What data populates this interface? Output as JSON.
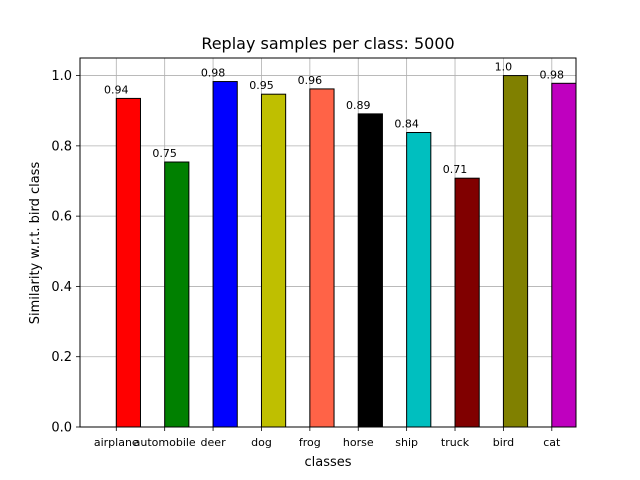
{
  "chart_data": {
    "type": "bar",
    "title": "Replay samples per class: 5000",
    "xlabel": "classes",
    "ylabel": "Similarity w.r.t. bird class",
    "categories": [
      "airplane",
      "automobile",
      "deer",
      "dog",
      "frog",
      "horse",
      "ship",
      "truck",
      "bird",
      "cat"
    ],
    "values": [
      0.935,
      0.754,
      0.983,
      0.947,
      0.962,
      0.891,
      0.838,
      0.708,
      1.0,
      0.978
    ],
    "data_labels": [
      "0.94",
      "0.75",
      "0.98",
      "0.95",
      "0.96",
      "0.89",
      "0.84",
      "0.71",
      "1.0",
      "0.98"
    ],
    "colors": [
      "#ff0000",
      "#008000",
      "#0000ff",
      "#bfbf00",
      "#ff6347",
      "#000000",
      "#00bfbf",
      "#800000",
      "#808000",
      "#bf00bf"
    ],
    "ylim": [
      0,
      1.05
    ],
    "yticks": [
      0.0,
      0.2,
      0.4,
      0.6,
      0.8,
      1.0
    ],
    "ytick_labels": [
      "0.0",
      "0.2",
      "0.4",
      "0.6",
      "0.8",
      "1.0"
    ],
    "grid": true,
    "legend": "none"
  }
}
